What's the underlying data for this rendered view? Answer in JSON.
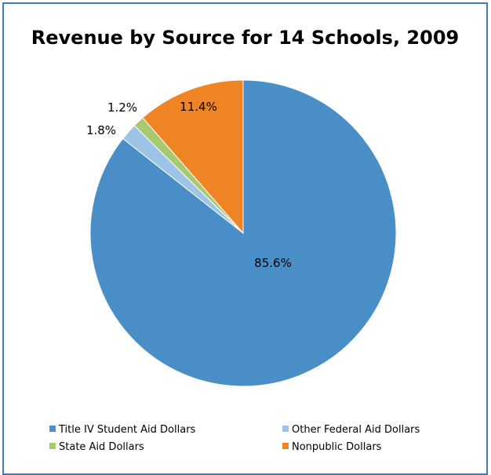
{
  "chart_data": {
    "type": "pie",
    "title": "Revenue by Source for 14 Schools, 2009",
    "slices": [
      {
        "name": "Title IV Student Aid Dollars",
        "value": 85.6,
        "label": "85.6%",
        "color": "#4a8ec8"
      },
      {
        "name": "Other Federal Aid Dollars",
        "value": 1.8,
        "label": "1.8%",
        "color": "#9dc3e6"
      },
      {
        "name": "State Aid Dollars",
        "value": 1.2,
        "label": "1.2%",
        "color": "#a9c971"
      },
      {
        "name": "Nonpublic Dollars",
        "value": 11.4,
        "label": "11.4%",
        "color": "#ee8424"
      }
    ],
    "legend_position": "bottom",
    "frame_color": "#3f7cbf"
  }
}
